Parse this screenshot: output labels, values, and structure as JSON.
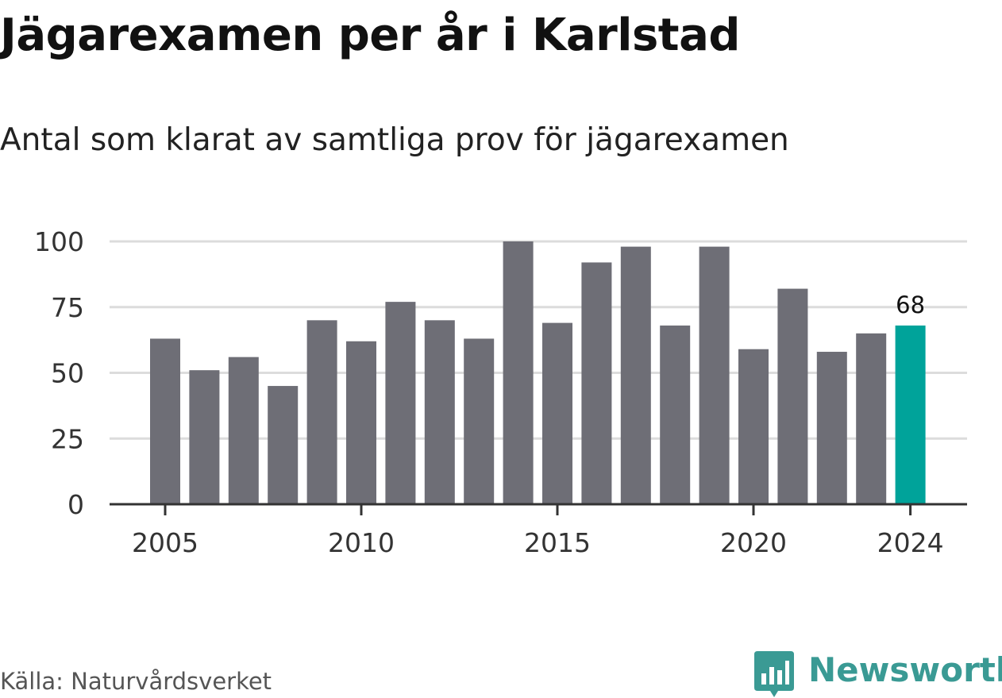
{
  "title": "Jägarexamen per år i Karlstad",
  "subtitle": "Antal som klarat av samtliga prov för jägarexamen",
  "source": "Källa: Naturvårdsverket",
  "brand": {
    "name": "Newsworthy",
    "icon": "bar-chart-logo-icon",
    "color": "#3a9a94"
  },
  "colors": {
    "bar": "#6e6e76",
    "highlight": "#00a39a",
    "grid": "#dcdcdc",
    "axis": "#333333"
  },
  "chart_data": {
    "type": "bar",
    "title": "Jägarexamen per år i Karlstad",
    "subtitle": "Antal som klarat av samtliga prov för jägarexamen",
    "categories": [
      "2005",
      "2006",
      "2007",
      "2008",
      "2009",
      "2010",
      "2011",
      "2012",
      "2013",
      "2014",
      "2015",
      "2016",
      "2017",
      "2018",
      "2019",
      "2020",
      "2021",
      "2022",
      "2023",
      "2024"
    ],
    "values": [
      63,
      51,
      56,
      45,
      70,
      62,
      77,
      70,
      63,
      100,
      69,
      92,
      98,
      68,
      98,
      59,
      82,
      58,
      65,
      68
    ],
    "x_tick_labels": [
      "2005",
      "2010",
      "2015",
      "2020",
      "2024"
    ],
    "y_ticks": [
      0,
      25,
      50,
      75,
      100
    ],
    "ylim": [
      0,
      100
    ],
    "highlight": {
      "category": "2024",
      "label": "68"
    },
    "grid": "horizontal",
    "legend": "none",
    "xlabel": "",
    "ylabel": ""
  }
}
